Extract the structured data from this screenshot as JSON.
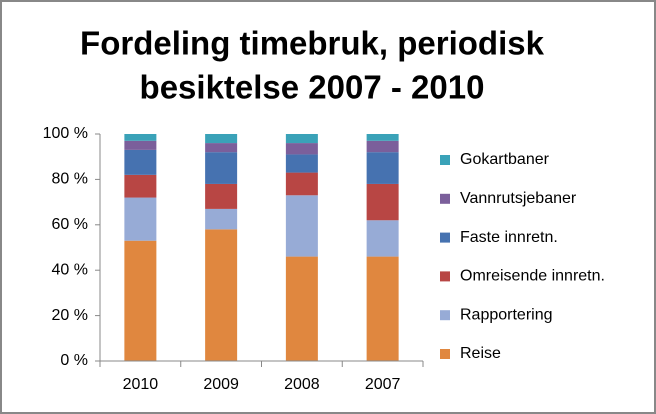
{
  "chart_data": {
    "type": "stacked_bar_percent",
    "title": [
      "Fordeling timebruk, periodisk",
      "besiktelse 2007 - 2010"
    ],
    "categories": [
      "2010",
      "2009",
      "2008",
      "2007"
    ],
    "series": [
      {
        "name": "Reise",
        "color": "#e0873f",
        "values": [
          53,
          58,
          46,
          46
        ]
      },
      {
        "name": "Rapportering",
        "color": "#97abd6",
        "values": [
          19,
          9,
          27,
          16
        ]
      },
      {
        "name": "Omreisende innretn.",
        "color": "#b84644",
        "values": [
          10,
          11,
          10,
          16
        ]
      },
      {
        "name": "Faste innretn.",
        "color": "#4672b0",
        "values": [
          11,
          14,
          8,
          14
        ]
      },
      {
        "name": "Vannrutsjebaner",
        "color": "#7b5f9b",
        "values": [
          4,
          4,
          5,
          5
        ]
      },
      {
        "name": "Gokartbaner",
        "color": "#3aa2b8",
        "values": [
          3,
          4,
          4,
          3
        ]
      }
    ],
    "ylim": [
      0,
      100
    ],
    "yticks": [
      {
        "value": 0,
        "label": "0 %"
      },
      {
        "value": 20,
        "label": "20 %"
      },
      {
        "value": 40,
        "label": "40 %"
      },
      {
        "value": 60,
        "label": "60 %"
      },
      {
        "value": 80,
        "label": "80 %"
      },
      {
        "value": 100,
        "label": "100 %"
      }
    ],
    "legend": "right"
  }
}
